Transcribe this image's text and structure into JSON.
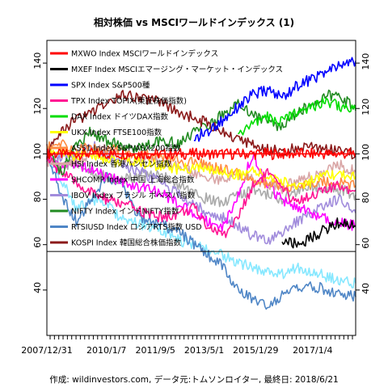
{
  "chart_data": {
    "type": "line",
    "title": "相対株価 vs MSCIワールドインデックス (1)",
    "caption": "作成: wildinvestors.com, データ元:トムソンロイター, 最終日: 2018/6/21",
    "x_ticks": [
      "2007/12/31",
      "2010/1/7",
      "2011/9/5",
      "2013/5/1",
      "2015/1/29",
      "2017/1/4"
    ],
    "xlim": [
      "2007/12/31",
      "2018/6/21"
    ],
    "ylim": [
      20,
      150
    ],
    "y_ticks": [
      40,
      60,
      80,
      100,
      120,
      140
    ],
    "reference_lines": [
      100,
      57
    ],
    "grid": false,
    "legend_position": "top-left",
    "series": [
      {
        "name": "MXWO Index MSCIワールドインデックス",
        "color": "#ff0000",
        "values": [
          100,
          100,
          100,
          100,
          100,
          100,
          100,
          100,
          100,
          100,
          100,
          100,
          100,
          100,
          100,
          100,
          100,
          100,
          100,
          100,
          100,
          100
        ]
      },
      {
        "name": "MXEF Index MSCIエマージング・マーケット・インデックス",
        "color": "#000000",
        "values": [
          null,
          null,
          null,
          null,
          null,
          null,
          null,
          null,
          null,
          null,
          null,
          null,
          null,
          null,
          null,
          null,
          62,
          60,
          63,
          67,
          70,
          68
        ]
      },
      {
        "name": "SPX Index S&P500種",
        "color": "#0000ff",
        "values": [
          null,
          null,
          null,
          null,
          null,
          null,
          null,
          null,
          null,
          null,
          107,
          110,
          115,
          121,
          126,
          128,
          125,
          130,
          133,
          136,
          139,
          141
        ]
      },
      {
        "name": "TPX Index TOPIX(東証株価指数)",
        "color": "#ff1493",
        "values": [
          98,
          92,
          87,
          83,
          80,
          78,
          76,
          73,
          72,
          74,
          76,
          68,
          64,
          72,
          86,
          92,
          84,
          79,
          82,
          84,
          86,
          84
        ]
      },
      {
        "name": "DAX Index ドイツDAX指数",
        "color": "#00dd00",
        "values": [
          null,
          null,
          null,
          null,
          null,
          null,
          null,
          null,
          null,
          null,
          null,
          null,
          null,
          108,
          113,
          116,
          114,
          119,
          121,
          123,
          121,
          119
        ]
      },
      {
        "name": "UKX Index FTSE100指数",
        "color": "#ffff00",
        "values": [
          100,
          101,
          99,
          100,
          98,
          96,
          97,
          95,
          95,
          93,
          94,
          93,
          92,
          91,
          92,
          90,
          88,
          86,
          88,
          90,
          91,
          90
        ]
      },
      {
        "name": "AS51 Index S&P/ASX200指数",
        "color": "#ff8c42",
        "values": [
          103,
          104,
          102,
          103,
          101,
          102,
          100,
          99,
          98,
          97,
          96,
          95,
          93,
          91,
          89,
          87,
          86,
          85,
          87,
          88,
          87,
          86
        ]
      },
      {
        "name": "HSI Index 香港ハンセン指数",
        "color": "#d9a6a6",
        "values": [
          97,
          95,
          97,
          100,
          103,
          99,
          96,
          98,
          96,
          94,
          92,
          90,
          88,
          91,
          89,
          87,
          85,
          88,
          90,
          93,
          95,
          92
        ]
      },
      {
        "name": "SHCOMP Index 中国 上海総合指数",
        "color": "#ff00ff",
        "values": [
          98,
          94,
          96,
          93,
          90,
          88,
          86,
          84,
          82,
          78,
          74,
          70,
          68,
          82,
          100,
          86,
          80,
          76,
          74,
          72,
          70,
          68
        ]
      },
      {
        "name": "IBOV Index ブラジル ボベスパ指数",
        "color": "#a18cdc",
        "values": [
          102,
          98,
          100,
          104,
          100,
          96,
          93,
          90,
          86,
          82,
          78,
          74,
          72,
          68,
          64,
          62,
          66,
          70,
          74,
          78,
          80,
          74
        ]
      },
      {
        "name": "NIFTY Index インドNIFTY指数",
        "color": "#228b22",
        "values": [
          100,
          92,
          104,
          110,
          106,
          104,
          102,
          104,
          106,
          104,
          110,
          112,
          118,
          122,
          118,
          114,
          112,
          118,
          122,
          126,
          124,
          121
        ]
      },
      {
        "name": "RTSIUSD Index ロシアRTS指数 USD",
        "color": "#4f86c6",
        "values": [
          100,
          82,
          70,
          80,
          90,
          88,
          74,
          70,
          68,
          66,
          60,
          55,
          50,
          40,
          36,
          32,
          38,
          40,
          42,
          40,
          38,
          37
        ]
      },
      {
        "name": "KOSPI Index 韓国総合株価指数",
        "color": "#8b1a1a",
        "values": [
          100,
          110,
          115,
          118,
          122,
          126,
          125,
          124,
          122,
          118,
          116,
          113,
          110,
          106,
          104,
          102,
          101,
          103,
          104,
          102,
          101,
          100
        ]
      },
      {
        "name": "",
        "color": "#87e8ff",
        "values": [
          100,
          88,
          76,
          80,
          78,
          72,
          70,
          68,
          66,
          62,
          60,
          58,
          55,
          52,
          50,
          48,
          47,
          50,
          48,
          46,
          44,
          43
        ]
      },
      {
        "name": "",
        "color": "#aaaaaa",
        "values": [
          100,
          94,
          96,
          92,
          90,
          88,
          90,
          92,
          90,
          86,
          82,
          80,
          78,
          82,
          84,
          82,
          80,
          83,
          86,
          85,
          84,
          82
        ]
      }
    ]
  }
}
